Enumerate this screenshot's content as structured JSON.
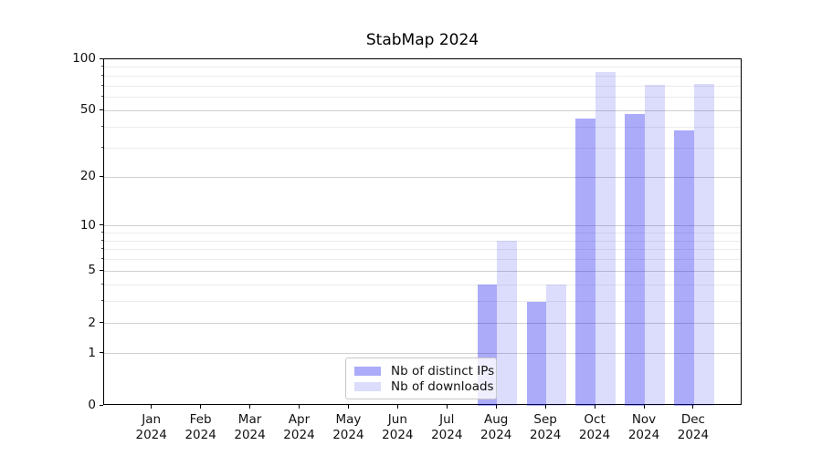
{
  "title": "StabMap 2024",
  "legend": {
    "items": [
      {
        "label": "Nb of distinct IPs",
        "color": "rgba(15,15,240,0.35)"
      },
      {
        "label": "Nb of downloads",
        "color": "rgba(15,15,240,0.145)"
      }
    ],
    "position": "lower center"
  },
  "colors": {
    "distinct_ips_bar": "rgba(15,15,240,0.35)",
    "downloads_bar": "rgba(15,15,240,0.145)",
    "major_grid": "#d0d0d0",
    "minor_grid": "#ebebeb",
    "spine": "#000000"
  },
  "chart_data": {
    "type": "bar",
    "title": "StabMap 2024",
    "categories": [
      "Jan 2024",
      "Feb 2024",
      "Mar 2024",
      "Apr 2024",
      "May 2024",
      "Jun 2024",
      "Jul 2024",
      "Aug 2024",
      "Sep 2024",
      "Oct 2024",
      "Nov 2024",
      "Dec 2024"
    ],
    "x_tick_line1": [
      "Jan",
      "Feb",
      "Mar",
      "Apr",
      "May",
      "Jun",
      "Jul",
      "Aug",
      "Sep",
      "Oct",
      "Nov",
      "Dec"
    ],
    "x_tick_line2": "2024",
    "series": [
      {
        "name": "Nb of distinct IPs",
        "values": [
          0,
          0,
          0,
          0,
          0,
          0,
          0,
          4,
          3,
          45,
          48,
          38
        ],
        "color": "rgba(15,15,240,0.35)"
      },
      {
        "name": "Nb of downloads",
        "values": [
          0,
          0,
          0,
          0,
          0,
          0,
          0,
          8,
          4,
          84,
          71,
          72
        ],
        "color": "rgba(15,15,240,0.145)"
      }
    ],
    "xlabel": "",
    "ylabel": "",
    "yscale": "log1p",
    "ylim": [
      0,
      100
    ],
    "yticks_major": [
      0,
      1,
      2,
      5,
      10,
      20,
      50,
      100
    ],
    "yticks_minor": [
      3,
      4,
      6,
      7,
      8,
      9,
      30,
      40,
      60,
      70,
      80,
      90
    ],
    "grid": "horizontal",
    "legend_position": "lower center"
  }
}
